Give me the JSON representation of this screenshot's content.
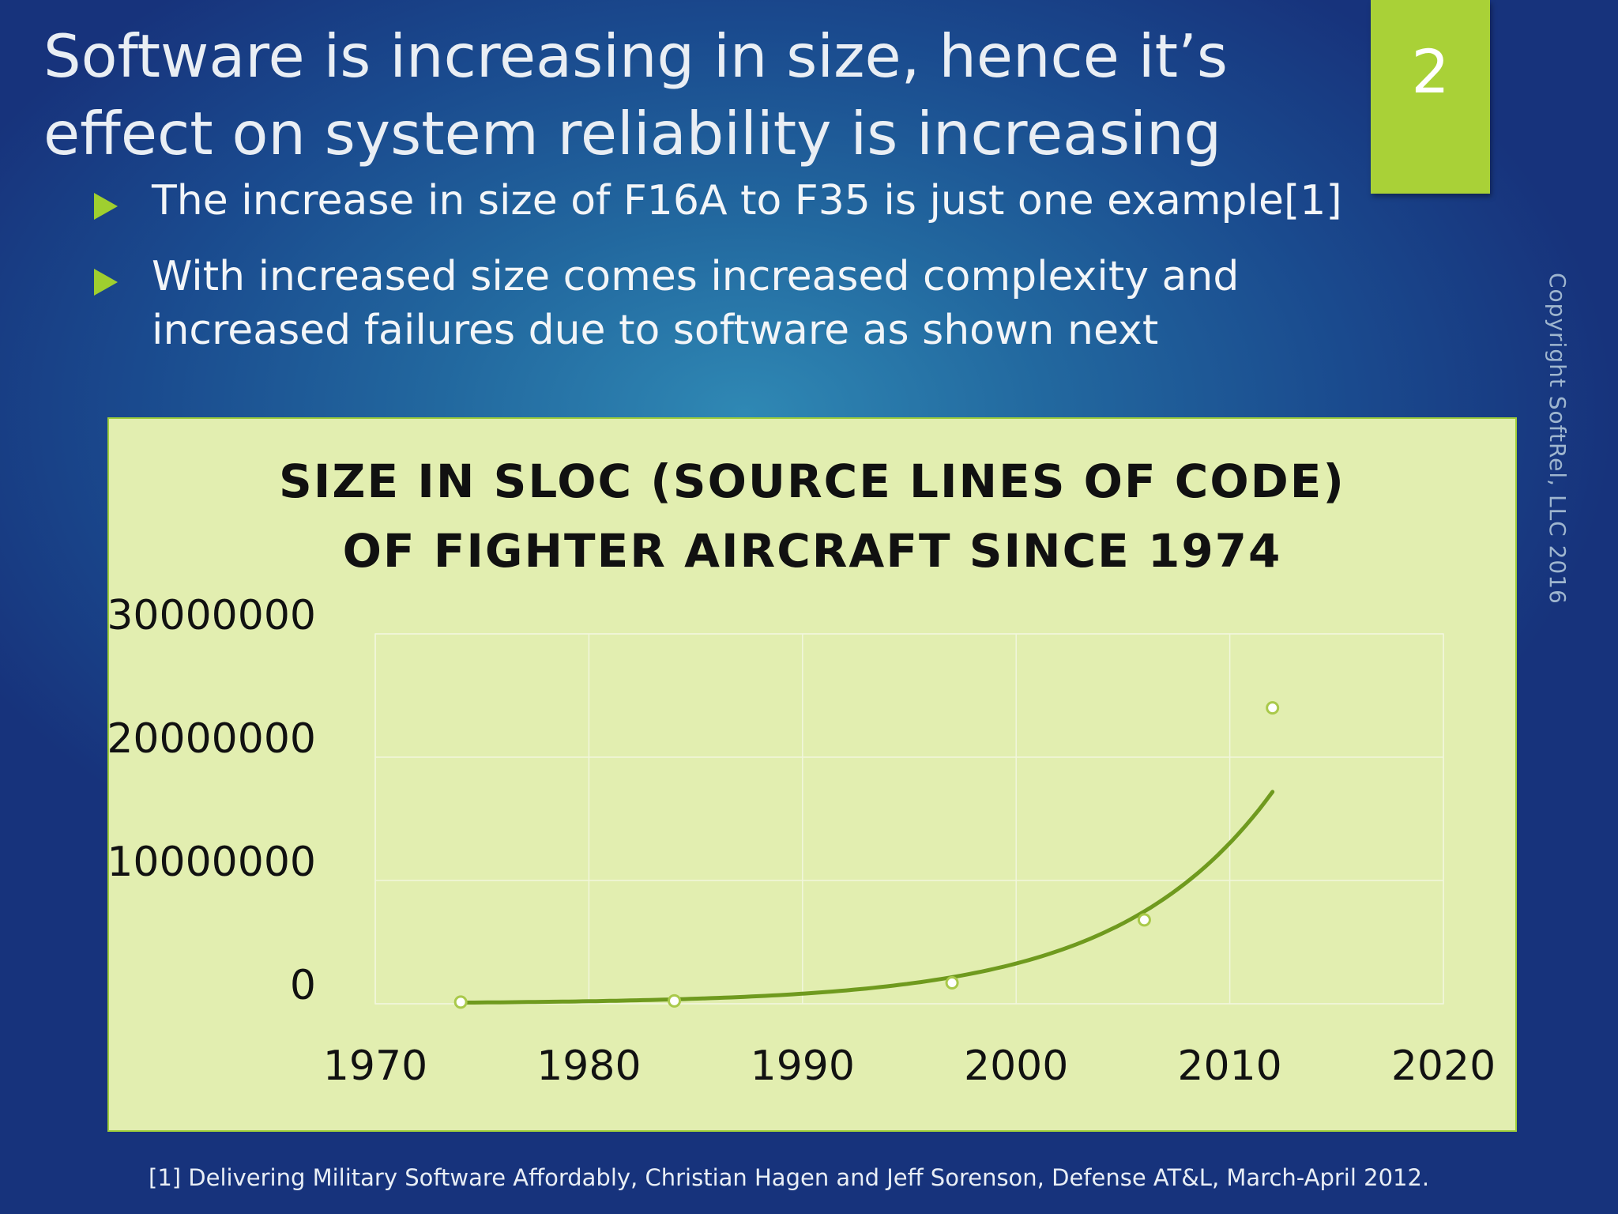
{
  "slide": {
    "title": "Software is increasing in size, hence it’s effect on system reliability is increasing",
    "number": "2",
    "bullets": [
      "The increase in size of F16A to F35 is just one example[1]",
      "With increased size comes increased complexity and increased failures due to software as shown next"
    ],
    "copyright": "Copyright SoftRel, LLC 2016",
    "footnote": "[1] Delivering Military Software Affordably, Christian Hagen and Jeff Sorenson, Defense AT&L, March-April 2012."
  },
  "colors": {
    "accent": "#a9d137",
    "chart_bg": "#e2eeb0",
    "trend": "#6f9a1e",
    "marker_fill": "#ffffff",
    "marker_stroke": "#a9c94a"
  },
  "chart_data": {
    "type": "scatter",
    "title_lines": [
      "SIZE IN SLOC (SOURCE LINES OF CODE)",
      "OF FIGHTER AIRCRAFT SINCE 1974"
    ],
    "x": [
      1974,
      1984,
      1997,
      2006,
      2012
    ],
    "y": [
      135000,
      236000,
      1700000,
      6800000,
      24000000
    ],
    "xlim": [
      1970,
      2020
    ],
    "ylim": [
      0,
      30000000
    ],
    "xticks": [
      "1970",
      "1980",
      "1990",
      "2000",
      "2010",
      "2020"
    ],
    "yticks": [
      "0",
      "10000000",
      "20000000",
      "30000000"
    ],
    "trendline": "exponential",
    "grid": true
  }
}
